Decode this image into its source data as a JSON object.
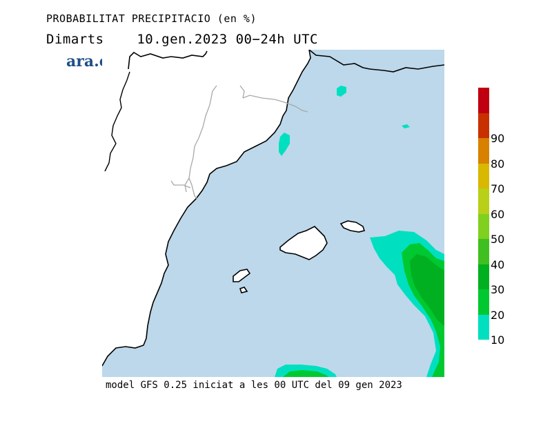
{
  "title": {
    "line1": "PROBABILITAT PRECIPITACIO (en %)",
    "line2": "Dimarts    10.gen.2023 00−24h UTC"
  },
  "brand": "ara.cat",
  "footer": "model GFS 0.25 iniciat a les 00 UTC del 09 gen 2023",
  "colors": {
    "sea": "#bcd8ea",
    "land": "#ffffff",
    "coast": "#000000",
    "border": "#a8a8a8"
  },
  "legend": {
    "bins": [
      {
        "label": "10",
        "color": "#00e0c0"
      },
      {
        "label": "20",
        "color": "#00c830"
      },
      {
        "label": "30",
        "color": "#00b020"
      },
      {
        "label": "40",
        "color": "#40c020"
      },
      {
        "label": "50",
        "color": "#80d020"
      },
      {
        "label": "60",
        "color": "#b8d018"
      },
      {
        "label": "70",
        "color": "#d8b800"
      },
      {
        "label": "80",
        "color": "#d88000"
      },
      {
        "label": "90",
        "color": "#c83000"
      },
      {
        "label": "",
        "color": "#c00010"
      }
    ]
  }
}
